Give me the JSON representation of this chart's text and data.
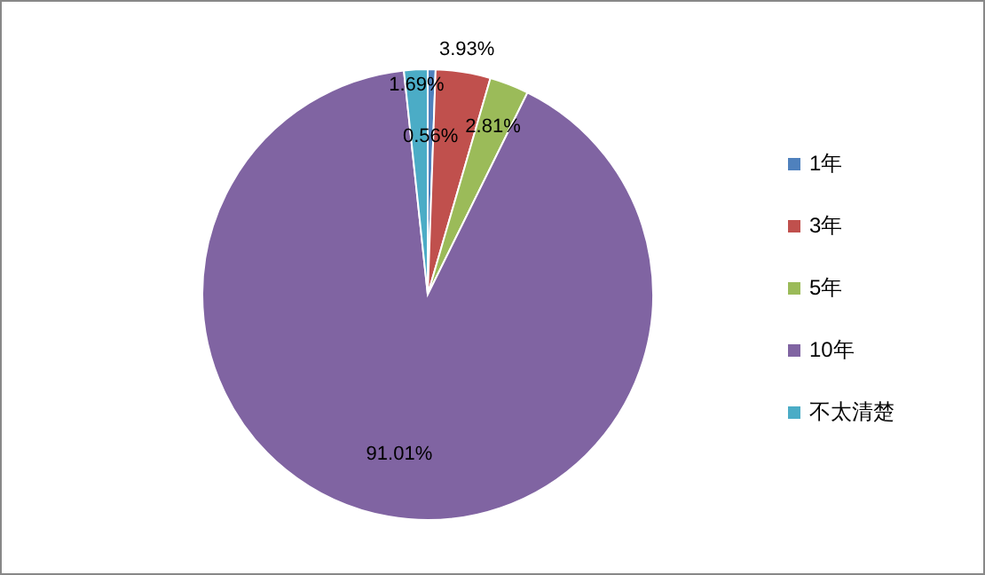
{
  "chart_data": {
    "type": "pie",
    "categories": [
      "1年",
      "3年",
      "5年",
      "10年",
      "不太清楚"
    ],
    "values": [
      0.56,
      3.93,
      2.81,
      91.01,
      1.69
    ],
    "colors": [
      "#4f81bd",
      "#c0504d",
      "#9bbb59",
      "#8064a2",
      "#4bacc6"
    ],
    "value_labels": [
      "0.56%",
      "3.93%",
      "2.81%",
      "91.01%",
      "1.69%"
    ],
    "legend": "right"
  }
}
